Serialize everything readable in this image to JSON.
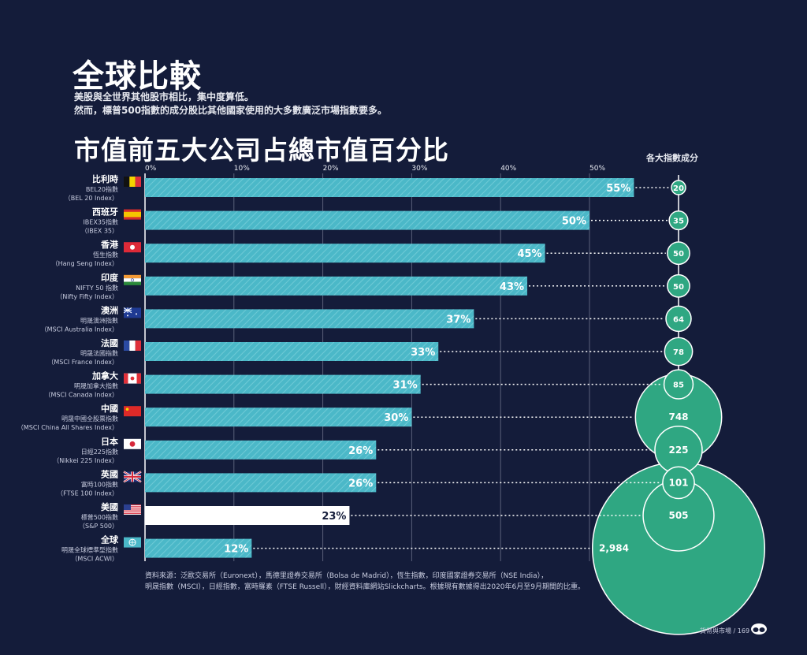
{
  "header": {
    "title": "全球比較",
    "subtitle_line1": "美股與全世界其他股市相比，集中度算低。",
    "subtitle_line2": "然而，標普500指數的成分股比其他國家使用的大多數廣泛市場指數要多。"
  },
  "chart_data": {
    "type": "bar",
    "title": "市值前五大公司占總市值百分比",
    "bubble_header": "各大指數成分",
    "x_ticks": [
      "0%",
      "10%",
      "20%",
      "30%",
      "40%",
      "50%"
    ],
    "xlim": [
      0,
      55
    ],
    "grid": true,
    "categories": [
      {
        "country": "比利時",
        "index_zh": "BEL20指數",
        "index_en": "（BEL 20 Index）",
        "flag": "belgium",
        "value": 55,
        "label": "55%",
        "constituents": 20,
        "constituents_label": "20"
      },
      {
        "country": "西班牙",
        "index_zh": "IBEX35指數",
        "index_en": "（IBEX 35）",
        "flag": "spain",
        "value": 50,
        "label": "50%",
        "constituents": 35,
        "constituents_label": "35"
      },
      {
        "country": "香港",
        "index_zh": "恆生指數",
        "index_en": "（Hang Seng Index）",
        "flag": "hong-kong",
        "value": 45,
        "label": "45%",
        "constituents": 50,
        "constituents_label": "50"
      },
      {
        "country": "印度",
        "index_zh": "NIFTY 50 指數",
        "index_en": "（Nifty Fifty Index）",
        "flag": "india",
        "value": 43,
        "label": "43%",
        "constituents": 50,
        "constituents_label": "50"
      },
      {
        "country": "澳洲",
        "index_zh": "明晟澳洲指數",
        "index_en": "（MSCI Australia Index）",
        "flag": "australia",
        "value": 37,
        "label": "37%",
        "constituents": 64,
        "constituents_label": "64"
      },
      {
        "country": "法國",
        "index_zh": "明晟法國指數",
        "index_en": "（MSCI France Index）",
        "flag": "france",
        "value": 33,
        "label": "33%",
        "constituents": 78,
        "constituents_label": "78"
      },
      {
        "country": "加拿大",
        "index_zh": "明晟加拿大指數",
        "index_en": "（MSCI Canada Index）",
        "flag": "canada",
        "value": 31,
        "label": "31%",
        "constituents": 85,
        "constituents_label": "85"
      },
      {
        "country": "中國",
        "index_zh": "明晟中國全股票指數",
        "index_en": "（MSCI China All Shares Index）",
        "flag": "china",
        "value": 30,
        "label": "30%",
        "constituents": 748,
        "constituents_label": "748"
      },
      {
        "country": "日本",
        "index_zh": "日經225指數",
        "index_en": "（Nikkei 225 Index）",
        "flag": "japan",
        "value": 26,
        "label": "26%",
        "constituents": 225,
        "constituents_label": "225"
      },
      {
        "country": "英國",
        "index_zh": "富時100指數",
        "index_en": "（FTSE 100 Index）",
        "flag": "uk",
        "value": 26,
        "label": "26%",
        "constituents": 101,
        "constituents_label": "101"
      },
      {
        "country": "美國",
        "index_zh": "標普500指數",
        "index_en": "（S&P 500）",
        "flag": "usa",
        "value": 23,
        "label": "23%",
        "constituents": 505,
        "constituents_label": "505",
        "highlight": true
      },
      {
        "country": "全球",
        "index_zh": "明晟全球標準型指數",
        "index_en": "（MSCI ACWI）",
        "flag": "globe",
        "value": 12,
        "label": "12%",
        "constituents": 2984,
        "constituents_label": "2,984"
      }
    ],
    "colors": {
      "background": "#141c3a",
      "bar": "#4bb8c8",
      "bar_highlight": "#ffffff",
      "bubble": "#2fa782"
    }
  },
  "source": {
    "line1": "資料來源：泛歐交易所（Euronext），馬德里證券交易所（Bolsa de Madrid），恆生指數，印度國家證券交易所（NSE India），",
    "line2": "明晟指數（MSCI），日經指數，富時羅素（FTSE Russell），財經資料庫網站Slickcharts。根據現有數據得出2020年6月至9月期間的比重。"
  },
  "footer": {
    "section": "貨幣與市場",
    "separator": "/",
    "page": "169"
  }
}
